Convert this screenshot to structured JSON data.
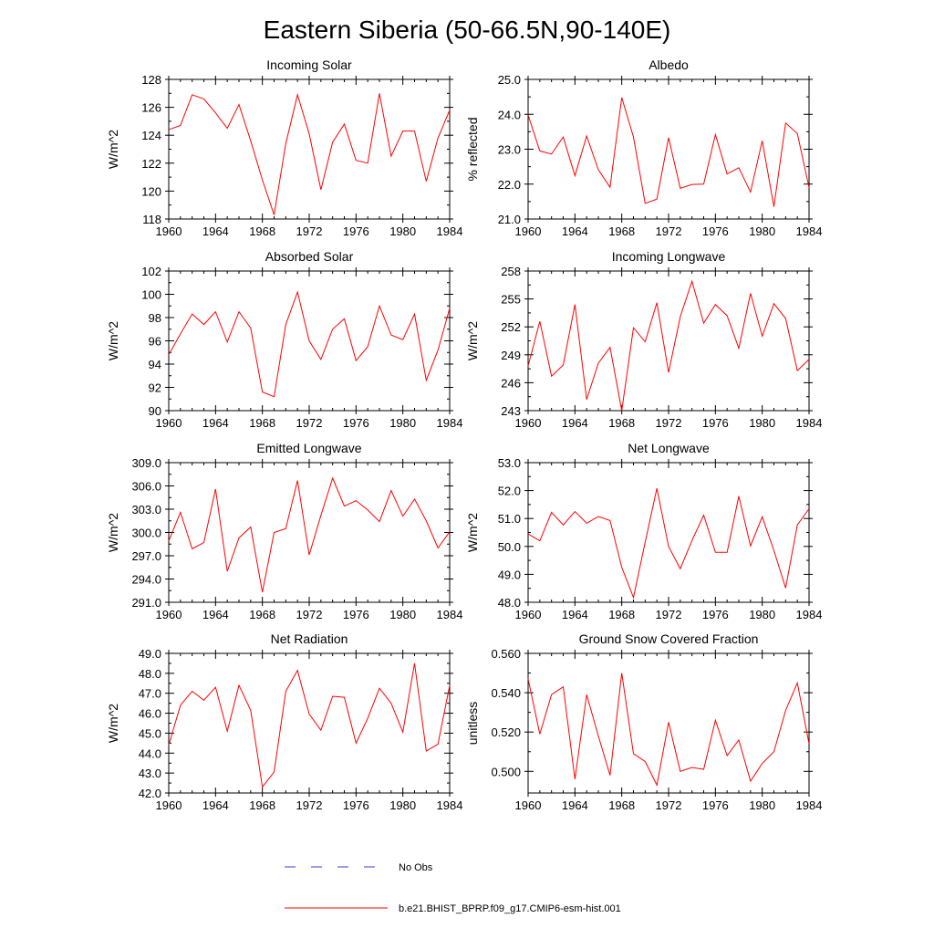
{
  "figure": {
    "title": "Eastern Siberia (50-66.5N,90-140E)",
    "legend": [
      {
        "label": "No Obs",
        "color": "#3b3bd6",
        "style": "dashed"
      },
      {
        "label": "b.e21.BHIST_BPRP.f09_g17.CMIP6-esm-hist.001",
        "color": "#ff0000",
        "style": "solid"
      }
    ]
  },
  "chart_data": [
    {
      "type": "line",
      "title": "Incoming Solar",
      "ylabel": "W/m^2",
      "xlim": [
        1960,
        1984
      ],
      "ylim": [
        118,
        128
      ],
      "xticks": [
        1960,
        1964,
        1968,
        1972,
        1976,
        1980,
        1984
      ],
      "xtick_labels": [
        "1960",
        "1964",
        "1968",
        "1972",
        "1976",
        "1980",
        "1984"
      ],
      "yticks": [
        118,
        120,
        122,
        124,
        126,
        128
      ],
      "ytick_labels": [
        "118",
        "120",
        "122",
        "124",
        "126",
        "128"
      ],
      "x": [
        1960,
        1961,
        1962,
        1963,
        1964,
        1965,
        1966,
        1967,
        1968,
        1969,
        1970,
        1971,
        1972,
        1973,
        1974,
        1975,
        1976,
        1977,
        1978,
        1979,
        1980,
        1981,
        1982,
        1983,
        1984
      ],
      "series": [
        {
          "color": "#ff0000",
          "values": [
            124.4,
            124.7,
            126.9,
            126.6,
            125.6,
            124.5,
            126.2,
            123.6,
            120.8,
            118.3,
            123.4,
            126.9,
            124.1,
            120.1,
            123.5,
            124.8,
            122.2,
            122.0,
            127.0,
            122.5,
            124.3,
            124.3,
            120.7,
            123.8,
            125.8
          ]
        }
      ]
    },
    {
      "type": "line",
      "title": "Albedo",
      "ylabel": "% reflected",
      "xlim": [
        1960,
        1984
      ],
      "ylim": [
        21.0,
        25.0
      ],
      "xticks": [
        1960,
        1964,
        1968,
        1972,
        1976,
        1980,
        1984
      ],
      "xtick_labels": [
        "1960",
        "1964",
        "1968",
        "1972",
        "1976",
        "1980",
        "1984"
      ],
      "yticks": [
        21,
        22,
        23,
        24,
        25
      ],
      "ytick_labels": [
        "21.0",
        "22.0",
        "23.0",
        "24.0",
        "25.0"
      ],
      "x": [
        1960,
        1961,
        1962,
        1963,
        1964,
        1965,
        1966,
        1967,
        1968,
        1969,
        1970,
        1971,
        1972,
        1973,
        1974,
        1975,
        1976,
        1977,
        1978,
        1979,
        1980,
        1981,
        1982,
        1983,
        1984
      ],
      "series": [
        {
          "color": "#ff0000",
          "values": [
            23.98,
            22.95,
            22.86,
            23.35,
            22.24,
            23.38,
            22.41,
            21.91,
            24.48,
            23.35,
            21.45,
            21.57,
            23.33,
            21.88,
            21.99,
            22.0,
            23.42,
            22.29,
            22.47,
            21.77,
            23.24,
            21.35,
            23.75,
            23.45,
            21.9
          ]
        }
      ]
    },
    {
      "type": "line",
      "title": "Absorbed Solar",
      "ylabel": "W/m^2",
      "xlim": [
        1960,
        1984
      ],
      "ylim": [
        90,
        102
      ],
      "xticks": [
        1960,
        1964,
        1968,
        1972,
        1976,
        1980,
        1984
      ],
      "xtick_labels": [
        "1960",
        "1964",
        "1968",
        "1972",
        "1976",
        "1980",
        "1984"
      ],
      "yticks": [
        90,
        92,
        94,
        96,
        98,
        100,
        102
      ],
      "ytick_labels": [
        "90",
        "92",
        "94",
        "96",
        "98",
        "100",
        "102"
      ],
      "x": [
        1960,
        1961,
        1962,
        1963,
        1964,
        1965,
        1966,
        1967,
        1968,
        1969,
        1970,
        1971,
        1972,
        1973,
        1974,
        1975,
        1976,
        1977,
        1978,
        1979,
        1980,
        1981,
        1982,
        1983,
        1984
      ],
      "series": [
        {
          "color": "#ff0000",
          "values": [
            94.8,
            96.6,
            98.3,
            97.4,
            98.5,
            95.9,
            98.5,
            97.1,
            91.6,
            91.2,
            97.4,
            100.2,
            96.0,
            94.4,
            97.0,
            97.9,
            94.3,
            95.5,
            99.0,
            96.5,
            96.1,
            98.3,
            92.6,
            95.2,
            98.8
          ]
        }
      ]
    },
    {
      "type": "line",
      "title": "Incoming Longwave",
      "ylabel": "W/m^2",
      "xlim": [
        1960,
        1984
      ],
      "ylim": [
        243,
        258
      ],
      "xticks": [
        1960,
        1964,
        1968,
        1972,
        1976,
        1980,
        1984
      ],
      "xtick_labels": [
        "1960",
        "1964",
        "1968",
        "1972",
        "1976",
        "1980",
        "1984"
      ],
      "yticks": [
        243,
        246,
        249,
        252,
        255,
        258
      ],
      "ytick_labels": [
        "243",
        "246",
        "249",
        "252",
        "255",
        "258"
      ],
      "x": [
        1960,
        1961,
        1962,
        1963,
        1964,
        1965,
        1966,
        1967,
        1968,
        1969,
        1970,
        1971,
        1972,
        1973,
        1974,
        1975,
        1976,
        1977,
        1978,
        1979,
        1980,
        1981,
        1982,
        1983,
        1984
      ],
      "series": [
        {
          "color": "#ff0000",
          "values": [
            247.8,
            252.6,
            246.7,
            247.9,
            254.4,
            244.2,
            248.1,
            249.8,
            243.0,
            251.9,
            250.4,
            254.6,
            247.1,
            253.1,
            256.9,
            252.4,
            254.4,
            253.2,
            249.7,
            255.6,
            251.0,
            254.5,
            252.9,
            247.3,
            248.5
          ]
        }
      ]
    },
    {
      "type": "line",
      "title": "Emitted Longwave",
      "ylabel": "W/m^2",
      "xlim": [
        1960,
        1984
      ],
      "ylim": [
        291.0,
        309.0
      ],
      "xticks": [
        1960,
        1964,
        1968,
        1972,
        1976,
        1980,
        1984
      ],
      "xtick_labels": [
        "1960",
        "1964",
        "1968",
        "1972",
        "1976",
        "1980",
        "1984"
      ],
      "yticks": [
        291,
        294,
        297,
        300,
        303,
        306,
        309
      ],
      "ytick_labels": [
        "291.0",
        "294.0",
        "297.0",
        "300.0",
        "303.0",
        "306.0",
        "309.0"
      ],
      "x": [
        1960,
        1961,
        1962,
        1963,
        1964,
        1965,
        1966,
        1967,
        1968,
        1969,
        1970,
        1971,
        1972,
        1973,
        1974,
        1975,
        1976,
        1977,
        1978,
        1979,
        1980,
        1981,
        1982,
        1983,
        1984
      ],
      "series": [
        {
          "color": "#ff0000",
          "values": [
            298.9,
            302.6,
            297.9,
            298.7,
            305.6,
            295.0,
            299.3,
            300.7,
            292.3,
            300.0,
            300.5,
            306.7,
            297.1,
            302.2,
            307.0,
            303.4,
            304.1,
            302.9,
            301.4,
            305.4,
            302.1,
            304.3,
            301.5,
            298.0,
            300.1
          ]
        }
      ]
    },
    {
      "type": "line",
      "title": "Net Longwave",
      "ylabel": "W/m^2",
      "xlim": [
        1960,
        1984
      ],
      "ylim": [
        48.0,
        53.0
      ],
      "xticks": [
        1960,
        1964,
        1968,
        1972,
        1976,
        1980,
        1984
      ],
      "xtick_labels": [
        "1960",
        "1964",
        "1968",
        "1972",
        "1976",
        "1980",
        "1984"
      ],
      "yticks": [
        48,
        49,
        50,
        51,
        52,
        53
      ],
      "ytick_labels": [
        "48.0",
        "49.0",
        "50.0",
        "51.0",
        "52.0",
        "53.0"
      ],
      "x": [
        1960,
        1961,
        1962,
        1963,
        1964,
        1965,
        1966,
        1967,
        1968,
        1969,
        1970,
        1971,
        1972,
        1973,
        1974,
        1975,
        1976,
        1977,
        1978,
        1979,
        1980,
        1981,
        1982,
        1983,
        1984
      ],
      "series": [
        {
          "color": "#ff0000",
          "values": [
            50.45,
            50.2,
            51.22,
            50.77,
            51.25,
            50.83,
            51.07,
            50.93,
            49.25,
            48.17,
            50.15,
            52.08,
            50.0,
            49.2,
            50.21,
            51.12,
            49.79,
            49.79,
            51.8,
            50.02,
            51.06,
            49.85,
            48.51,
            50.77,
            51.35
          ]
        }
      ]
    },
    {
      "type": "line",
      "title": "Net Radiation",
      "ylabel": "W/m^2",
      "xlim": [
        1960,
        1984
      ],
      "ylim": [
        42.0,
        49.0
      ],
      "xticks": [
        1960,
        1964,
        1968,
        1972,
        1976,
        1980,
        1984
      ],
      "xtick_labels": [
        "1960",
        "1964",
        "1968",
        "1972",
        "1976",
        "1980",
        "1984"
      ],
      "yticks": [
        42,
        43,
        44,
        45,
        46,
        47,
        48,
        49
      ],
      "ytick_labels": [
        "42.0",
        "43.0",
        "44.0",
        "45.0",
        "46.0",
        "47.0",
        "48.0",
        "49.0"
      ],
      "x": [
        1960,
        1961,
        1962,
        1963,
        1964,
        1965,
        1966,
        1967,
        1968,
        1969,
        1970,
        1971,
        1972,
        1973,
        1974,
        1975,
        1976,
        1977,
        1978,
        1979,
        1980,
        1981,
        1982,
        1983,
        1984
      ],
      "series": [
        {
          "color": "#ff0000",
          "values": [
            44.4,
            46.4,
            47.1,
            46.65,
            47.3,
            45.1,
            47.4,
            46.15,
            42.3,
            43.05,
            47.1,
            48.15,
            45.95,
            45.15,
            46.85,
            46.8,
            44.5,
            45.75,
            47.25,
            46.5,
            45.05,
            48.5,
            44.1,
            44.45,
            47.4
          ]
        }
      ]
    },
    {
      "type": "line",
      "title": "Ground Snow Covered Fraction",
      "ylabel": "unitless",
      "xlim": [
        1960,
        1984
      ],
      "ylim": [
        0.489,
        0.56
      ],
      "xticks": [
        1960,
        1964,
        1968,
        1972,
        1976,
        1980,
        1984
      ],
      "xtick_labels": [
        "1960",
        "1964",
        "1968",
        "1972",
        "1976",
        "1980",
        "1984"
      ],
      "yticks": [
        0.5,
        0.52,
        0.54,
        0.56
      ],
      "ytick_labels": [
        "0.500",
        "0.520",
        "0.540",
        "0.560"
      ],
      "x": [
        1960,
        1961,
        1962,
        1963,
        1964,
        1965,
        1966,
        1967,
        1968,
        1969,
        1970,
        1971,
        1972,
        1973,
        1974,
        1975,
        1976,
        1977,
        1978,
        1979,
        1980,
        1981,
        1982,
        1983,
        1984
      ],
      "series": [
        {
          "color": "#ff0000",
          "values": [
            0.547,
            0.519,
            0.539,
            0.543,
            0.496,
            0.539,
            0.518,
            0.498,
            0.55,
            0.509,
            0.505,
            0.493,
            0.525,
            0.5,
            0.502,
            0.501,
            0.526,
            0.508,
            0.516,
            0.495,
            0.504,
            0.51,
            0.531,
            0.545,
            0.514
          ]
        }
      ]
    }
  ]
}
